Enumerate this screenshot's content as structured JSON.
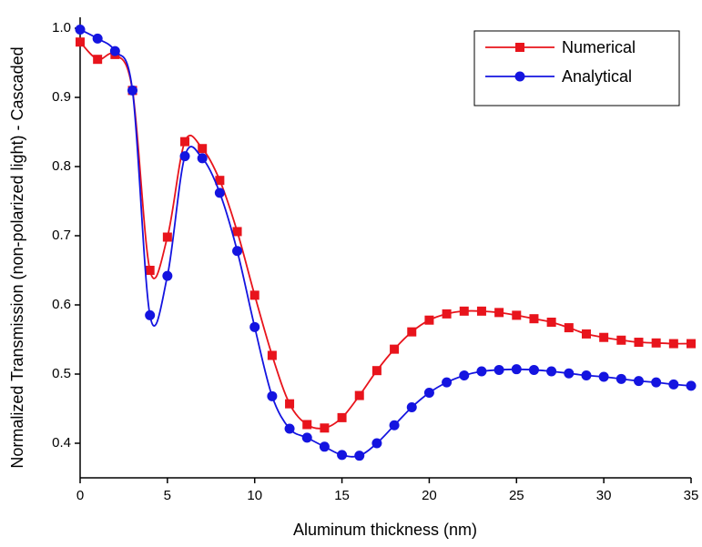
{
  "chart_data": {
    "type": "line",
    "x_label": "Aluminum thickness (nm)",
    "y_label": "Normalized Transmission (non-polarized light) - Cascaded",
    "x": [
      0,
      1,
      2,
      3,
      4,
      5,
      6,
      7,
      8,
      9,
      10,
      11,
      12,
      13,
      14,
      15,
      16,
      17,
      18,
      19,
      20,
      21,
      22,
      23,
      24,
      25,
      26,
      27,
      28,
      29,
      30,
      31,
      32,
      33,
      34,
      35
    ],
    "series": [
      {
        "name": "Numerical",
        "color": "#e8141c",
        "marker": "square",
        "values": [
          0.98,
          0.955,
          0.962,
          0.91,
          0.65,
          0.698,
          0.836,
          0.826,
          0.78,
          0.706,
          0.614,
          0.527,
          0.457,
          0.427,
          0.422,
          0.437,
          0.469,
          0.505,
          0.536,
          0.561,
          0.578,
          0.587,
          0.591,
          0.591,
          0.589,
          0.585,
          0.58,
          0.575,
          0.567,
          0.558,
          0.553,
          0.549,
          0.546,
          0.545,
          0.544,
          0.544
        ]
      },
      {
        "name": "Analytical",
        "color": "#1414e0",
        "marker": "circle",
        "values": [
          0.998,
          0.985,
          0.967,
          0.91,
          0.585,
          0.642,
          0.815,
          0.812,
          0.762,
          0.678,
          0.568,
          0.468,
          0.421,
          0.408,
          0.395,
          0.383,
          0.382,
          0.4,
          0.426,
          0.452,
          0.473,
          0.488,
          0.498,
          0.504,
          0.506,
          0.507,
          0.506,
          0.504,
          0.501,
          0.498,
          0.496,
          0.493,
          0.49,
          0.488,
          0.485,
          0.483
        ]
      }
    ],
    "xlim": [
      0,
      35
    ],
    "xticks": [
      0,
      5,
      10,
      15,
      20,
      25,
      30,
      35
    ],
    "ylim": [
      0.35,
      1.0
    ],
    "yticks": [
      0.4,
      0.5,
      0.6,
      0.7,
      0.8,
      0.9,
      {
        "value": 1,
        "label": "1.0"
      }
    ],
    "grid": false,
    "legend": "upper right",
    "smooth": true
  }
}
